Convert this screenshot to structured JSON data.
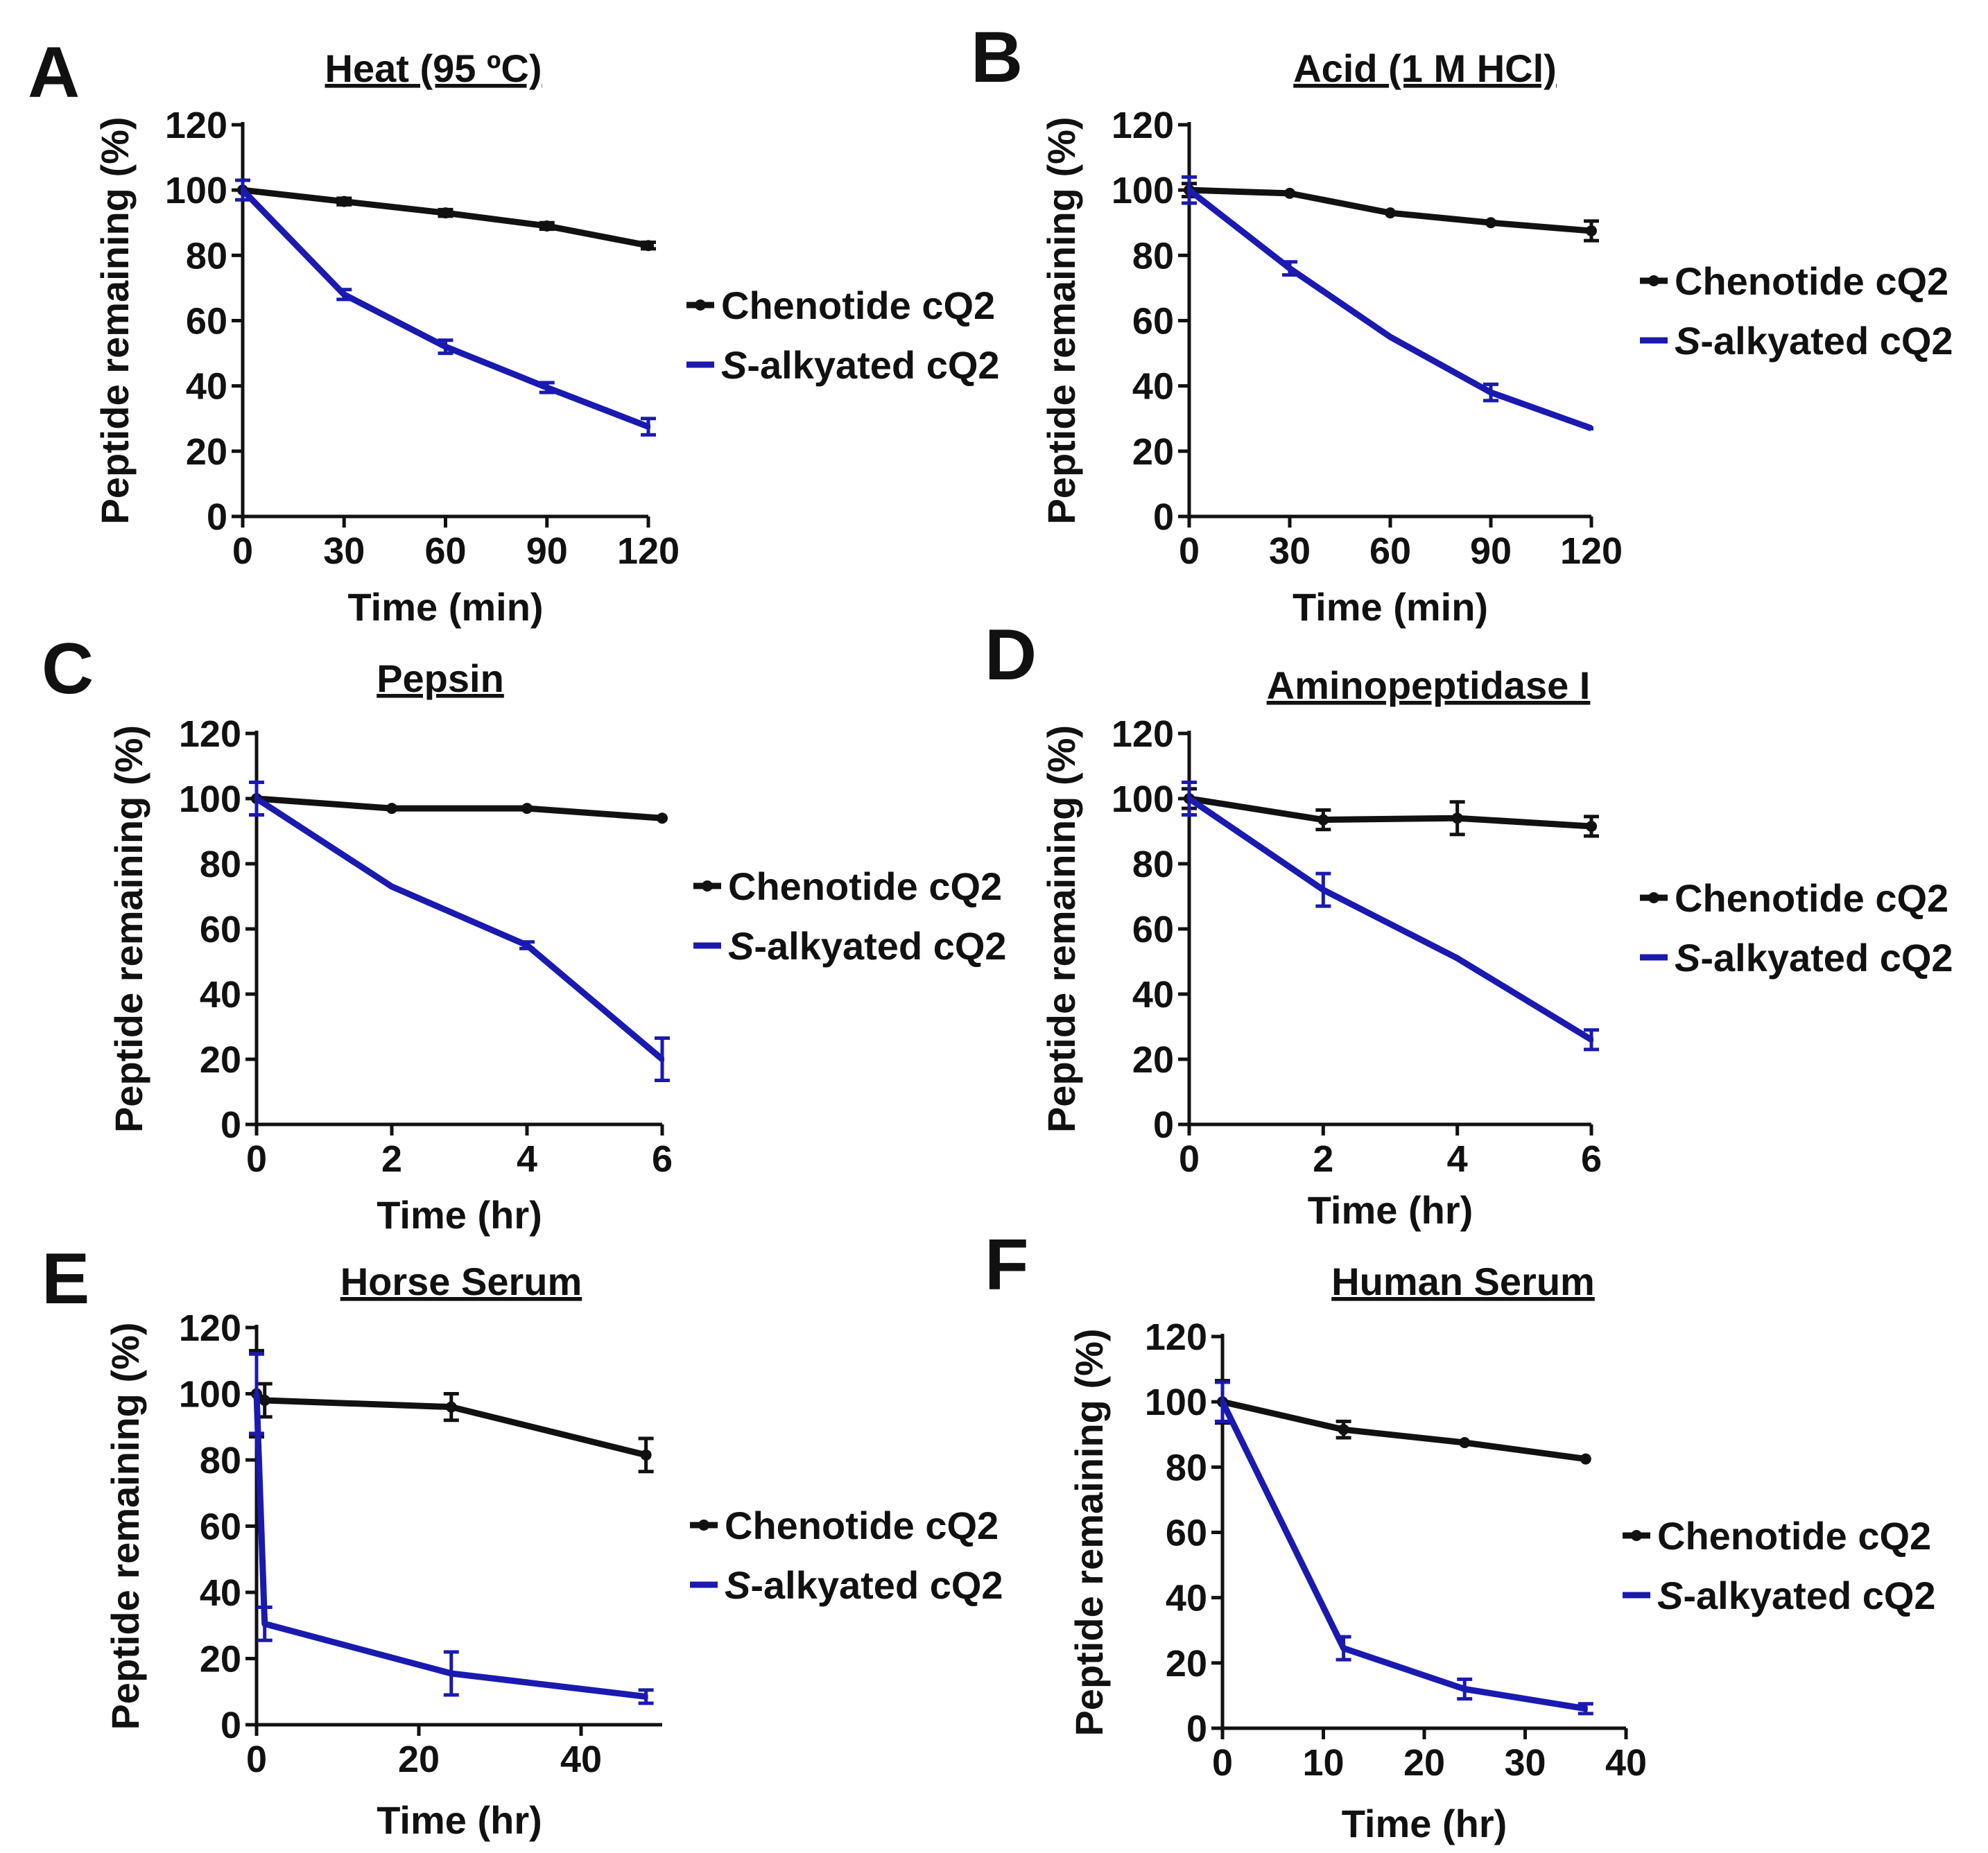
{
  "chart_data": [
    {
      "panel": "A",
      "type": "line",
      "title": "Heat (95 ºC)",
      "xlabel": "Time (min)",
      "ylabel": "Peptide remaining (%)",
      "x": [
        0,
        30,
        60,
        90,
        120
      ],
      "xlim": [
        0,
        120
      ],
      "xticks": [
        0,
        30,
        60,
        90,
        120
      ],
      "ylim": [
        0,
        120
      ],
      "yticks": [
        0,
        20,
        40,
        60,
        80,
        100,
        120
      ],
      "series": [
        {
          "name": "Chenotide cQ2",
          "name_prefix": "",
          "name_rest": "Chenotide cQ2",
          "color": "#111111",
          "x": [
            0,
            30,
            60,
            90,
            120
          ],
          "values": [
            100,
            96.5,
            93,
            89,
            83
          ],
          "errors": [
            0,
            1,
            1,
            1,
            1
          ]
        },
        {
          "name": "S-alkyated cQ2",
          "name_prefix": "S",
          "name_rest": "-alkyated cQ2",
          "color": "#1a1ab0",
          "x": [
            0,
            30,
            60,
            90,
            120
          ],
          "values": [
            100,
            68,
            52,
            39.5,
            27.5
          ],
          "errors": [
            3,
            1.5,
            2,
            1.5,
            2.5
          ]
        }
      ],
      "legend": "right"
    },
    {
      "panel": "B",
      "type": "line",
      "title": "Acid (1 M HCl)",
      "xlabel": "Time (min)",
      "ylabel": "Peptide remaining (%)",
      "xlim": [
        0,
        120
      ],
      "xticks": [
        0,
        30,
        60,
        90,
        120
      ],
      "ylim": [
        0,
        120
      ],
      "yticks": [
        0,
        20,
        40,
        60,
        80,
        100,
        120
      ],
      "series": [
        {
          "name": "Chenotide cQ2",
          "name_prefix": "",
          "name_rest": "Chenotide cQ2",
          "color": "#111111",
          "x": [
            0,
            30,
            60,
            90,
            120
          ],
          "values": [
            100,
            99,
            93,
            90,
            87.5
          ],
          "errors": [
            2,
            0.5,
            0.5,
            0.5,
            3
          ]
        },
        {
          "name": "S-alkyated cQ2",
          "name_prefix": "S",
          "name_rest": "-alkyated cQ2",
          "color": "#1a1ab0",
          "x": [
            0,
            30,
            60,
            90,
            120
          ],
          "values": [
            100,
            76,
            55,
            38,
            27
          ],
          "errors": [
            4,
            2,
            0.5,
            2.5,
            0.5
          ]
        }
      ],
      "legend": "right"
    },
    {
      "panel": "C",
      "type": "line",
      "title": "Pepsin",
      "xlabel": "Time (hr)",
      "ylabel": "Peptide remaining (%)",
      "xlim": [
        0,
        6
      ],
      "xticks": [
        0,
        2,
        4,
        6
      ],
      "ylim": [
        0,
        120
      ],
      "yticks": [
        0,
        20,
        40,
        60,
        80,
        100,
        120
      ],
      "series": [
        {
          "name": "Chenotide cQ2",
          "name_prefix": "",
          "name_rest": "Chenotide cQ2",
          "color": "#111111",
          "x": [
            0,
            2,
            4,
            6
          ],
          "values": [
            100,
            97,
            97,
            94
          ],
          "errors": [
            0.5,
            0.5,
            0.5,
            0.5
          ]
        },
        {
          "name": "S-alkyated cQ2",
          "name_prefix": "S",
          "name_rest": "-alkyated cQ2",
          "color": "#1a1ab0",
          "x": [
            0,
            2,
            4,
            6
          ],
          "values": [
            100,
            73,
            55,
            20
          ],
          "errors": [
            5,
            0.5,
            1,
            6.5
          ]
        }
      ],
      "legend": "right"
    },
    {
      "panel": "D",
      "type": "line",
      "title": "Aminopeptidase I",
      "xlabel": "Time (hr)",
      "ylabel": "Peptide remaining (%)",
      "xlim": [
        0,
        6
      ],
      "xticks": [
        0,
        2,
        4,
        6
      ],
      "ylim": [
        0,
        120
      ],
      "yticks": [
        0,
        20,
        40,
        60,
        80,
        100,
        120
      ],
      "series": [
        {
          "name": "Chenotide cQ2",
          "name_prefix": "",
          "name_rest": "Chenotide cQ2",
          "color": "#111111",
          "x": [
            0,
            2,
            4,
            6
          ],
          "values": [
            100,
            93.5,
            94,
            91.5
          ],
          "errors": [
            3,
            3,
            5,
            3
          ]
        },
        {
          "name": "S-alkyated cQ2",
          "name_prefix": "S",
          "name_rest": "-alkyated cQ2",
          "color": "#1a1ab0",
          "x": [
            0,
            2,
            4,
            6
          ],
          "values": [
            100,
            72,
            51,
            26
          ],
          "errors": [
            5,
            5,
            0.5,
            3
          ]
        }
      ],
      "legend": "right"
    },
    {
      "panel": "E",
      "type": "line",
      "title": "Horse Serum",
      "xlabel": "Time (hr)",
      "ylabel": "Peptide remaining (%)",
      "xlim": [
        0,
        50
      ],
      "xticks": [
        0,
        20,
        40
      ],
      "ylim": [
        0,
        120
      ],
      "yticks": [
        0,
        20,
        40,
        60,
        80,
        100,
        120
      ],
      "series": [
        {
          "name": "Chenotide cQ2",
          "name_prefix": "",
          "name_rest": "Chenotide cQ2",
          "color": "#111111",
          "x": [
            0,
            1,
            24,
            48
          ],
          "values": [
            100,
            98,
            96,
            81.5
          ],
          "errors": [
            13,
            5,
            4,
            5
          ]
        },
        {
          "name": "S-alkyated cQ2",
          "name_prefix": "S",
          "name_rest": "-alkyated cQ2",
          "color": "#1a1ab0",
          "x": [
            0,
            1,
            24,
            48
          ],
          "values": [
            100,
            30.5,
            15.5,
            8.5
          ],
          "errors": [
            12,
            5,
            6.5,
            2
          ]
        }
      ],
      "legend": "right"
    },
    {
      "panel": "F",
      "type": "line",
      "title": "Human Serum",
      "xlabel": "Time (hr)",
      "ylabel": "Peptide remaining (%)",
      "xlim": [
        0,
        40
      ],
      "xticks": [
        0,
        10,
        20,
        30,
        40
      ],
      "ylim": [
        0,
        120
      ],
      "yticks": [
        0,
        20,
        40,
        60,
        80,
        100,
        120
      ],
      "series": [
        {
          "name": "Chenotide cQ2",
          "name_prefix": "",
          "name_rest": "Chenotide cQ2",
          "color": "#111111",
          "x": [
            0,
            12,
            24,
            36
          ],
          "values": [
            100,
            91.5,
            87.5,
            82.5
          ],
          "errors": [
            6.5,
            2.5,
            0.5,
            0.5
          ]
        },
        {
          "name": "S-alkyated cQ2",
          "name_prefix": "S",
          "name_rest": "-alkyated cQ2",
          "color": "#1a1ab0",
          "x": [
            0,
            12,
            24,
            36
          ],
          "values": [
            100,
            24.5,
            12,
            6
          ],
          "errors": [
            6,
            3.5,
            3,
            1.5
          ]
        }
      ],
      "legend": "right"
    }
  ]
}
